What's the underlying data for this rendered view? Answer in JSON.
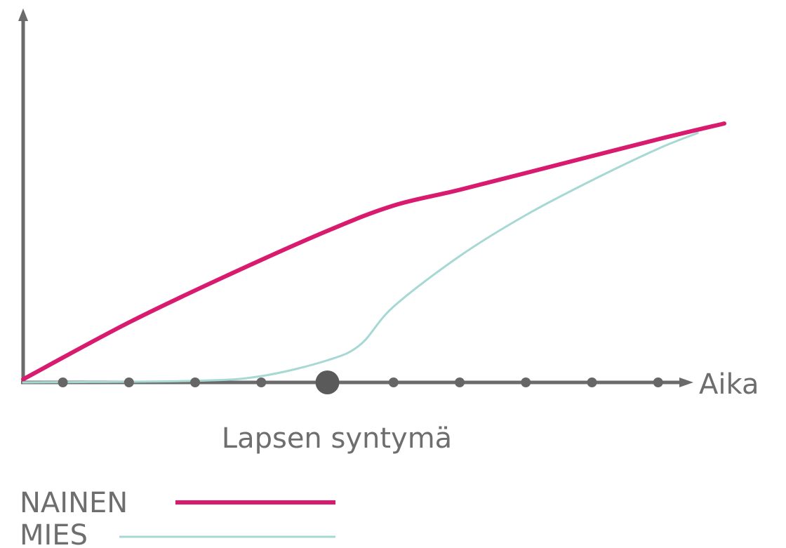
{
  "chart_data": {
    "type": "line",
    "xlabel": "Aika",
    "ylabel": "",
    "x_marker_label": "Lapsen syntymä",
    "x_ticks": [
      1,
      2,
      3,
      4,
      5,
      6,
      7,
      8,
      9,
      10
    ],
    "x_highlight_tick": 5,
    "xlim": [
      0.4,
      11.0
    ],
    "ylim": [
      0,
      100
    ],
    "grid": false,
    "legend": "bottom-left",
    "series": [
      {
        "name": "NAINEN",
        "color": "#d81b6e",
        "x": [
          0.4,
          2.0,
          3.5,
          5.0,
          6.0,
          7.0,
          8.5,
          10.0,
          11.0
        ],
        "y": [
          1,
          19,
          34,
          48,
          56,
          61,
          69,
          77,
          82
        ]
      },
      {
        "name": "MIES",
        "color": "#a6d8d4",
        "x": [
          0.4,
          3.0,
          4.0,
          5.0,
          5.5,
          6.0,
          7.0,
          8.0,
          9.0,
          10.0,
          10.6
        ],
        "y": [
          0,
          0.5,
          2,
          7,
          12,
          24,
          40,
          53,
          64,
          74,
          79
        ]
      }
    ]
  }
}
